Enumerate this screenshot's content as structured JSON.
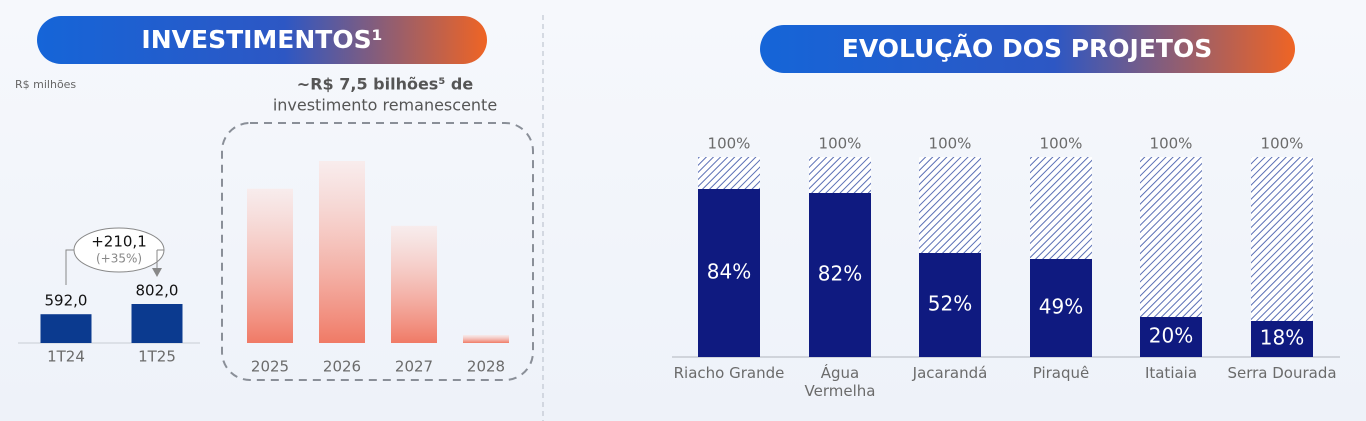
{
  "chart_data": [
    {
      "type": "bar",
      "title": "INVESTIMENTOS¹",
      "unit": "R$ milhões",
      "categories": [
        "1T24",
        "1T25"
      ],
      "values": [
        592.0,
        802.0
      ],
      "value_labels": [
        "592,0",
        "802,0"
      ],
      "delta": "+210,1",
      "delta_pct": "(+35%)",
      "color": "#0b3a8f"
    },
    {
      "type": "bar",
      "annotation": [
        "~R$ 7,5 bilhões⁵ de",
        "investimento remanescente"
      ],
      "categories": [
        "2025",
        "2026",
        "2027",
        "2028"
      ],
      "values": [
        2500,
        2950,
        1900,
        130
      ],
      "color": "#f0806c"
    },
    {
      "type": "stacked_bar",
      "title": "EVOLUÇÃO DOS PROJETOS",
      "categories": [
        "Riacho Grande",
        "Água\nVermelha",
        "Jacarandá",
        "Piraquê",
        "Itatiaia",
        "Serra Dourada"
      ],
      "totals": [
        100,
        100,
        100,
        100,
        100,
        100
      ],
      "total_labels": [
        "100%",
        "100%",
        "100%",
        "100%",
        "100%",
        "100%"
      ],
      "series": [
        {
          "color": "#0f1a80",
          "values": [
            84,
            82,
            52,
            49,
            20,
            18
          ],
          "value_labels": [
            "84%",
            "82%",
            "52%",
            "49%",
            "20%",
            "18%"
          ]
        }
      ]
    }
  ]
}
